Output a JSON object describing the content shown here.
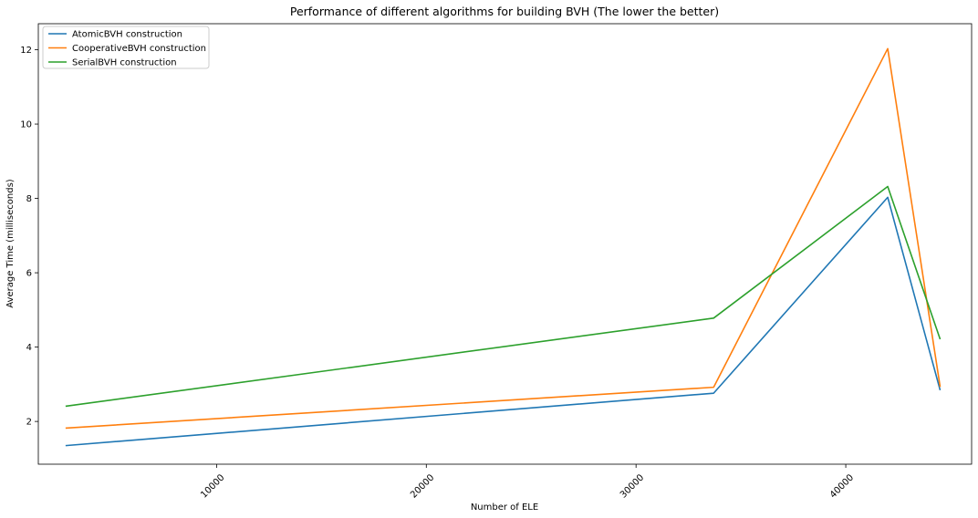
{
  "chart_data": {
    "type": "line",
    "title": "Performance of different algorithms for building BVH (The lower the better)",
    "xlabel": "Number of ELE",
    "ylabel": "Average Time (milliseconds)",
    "xlim": [
      1500,
      46000
    ],
    "ylim": [
      0.85,
      12.7
    ],
    "xticks": [
      10000,
      20000,
      30000,
      40000
    ],
    "yticks": [
      2,
      4,
      6,
      8,
      10,
      12
    ],
    "grid": false,
    "legend_position": "top-left",
    "x": [
      2800,
      33700,
      42000,
      44500
    ],
    "series": [
      {
        "name": "AtomicBVH construction",
        "color": "#1f77b4",
        "values": [
          1.35,
          2.76,
          8.03,
          2.84
        ]
      },
      {
        "name": "CooperativeBVH construction",
        "color": "#ff7f0e",
        "values": [
          1.82,
          2.92,
          12.03,
          2.93
        ]
      },
      {
        "name": "SerialBVH construction",
        "color": "#2ca02c",
        "values": [
          2.41,
          4.78,
          8.32,
          4.21
        ]
      }
    ]
  }
}
